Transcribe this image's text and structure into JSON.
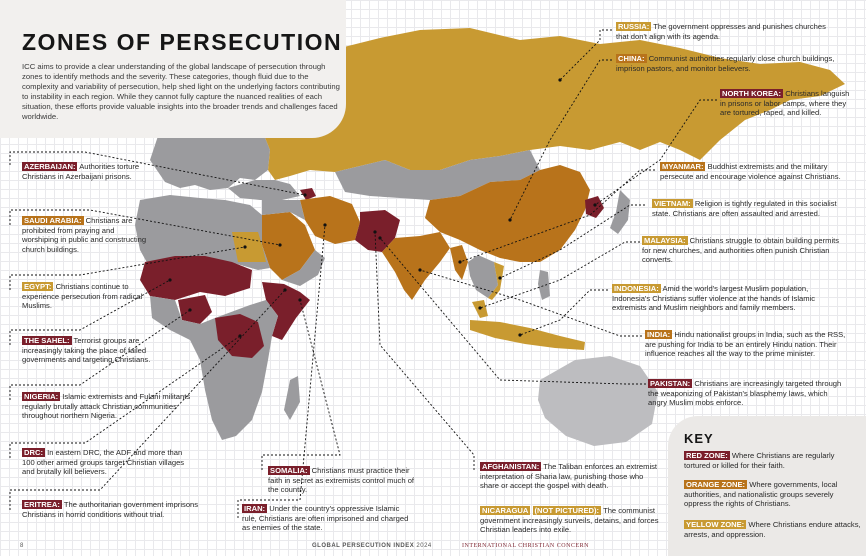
{
  "title": "ZONES OF PERSECUTION",
  "intro": "ICC aims to provide a clear understanding of the global landscape of persecution through zones to identify methods and the severity. These categories, though fluid due to the complexity and variability of persecution, help shed light on the underlying factors contributing to instability in each region. While they cannot fully capture the nuanced realities of each situation, these efforts provide valuable insights into the broader trends and challenges faced worldwide.",
  "colors": {
    "red": "#7a1f2b",
    "orange": "#b8731b",
    "yellow": "#c89a32",
    "grey": "#9b9b9e",
    "light_grey": "#bdbdc0"
  },
  "left_callouts": [
    {
      "zone": "red",
      "name": "AZERBAIJAN:",
      "text": "Authorities torture Christians in Azerbaijani prisons."
    },
    {
      "zone": "orange",
      "name": "SAUDI ARABIA:",
      "text": "Christians are prohibited from praying and worshiping in public and constructing church buildings."
    },
    {
      "zone": "yellow",
      "name": "EGYPT:",
      "text": "Christians continue to experience persecution from radical Muslims."
    },
    {
      "zone": "red",
      "name": "THE SAHEL:",
      "text": "Terrorist groups are increasingly taking the place of failed governments and targeting Christians."
    },
    {
      "zone": "red",
      "name": "NIGERIA:",
      "text": "Islamic extremists and Fulani militants regularly brutally attack Christian communities throughout northern Nigeria."
    },
    {
      "zone": "red",
      "name": "DRC:",
      "text": "In eastern DRC, the ADF and more than 100 other armed groups target Christian villages and brutally kill believers."
    },
    {
      "zone": "red",
      "name": "ERITREA:",
      "text": "The authoritarian government imprisons Christians in horrid conditions without trial."
    }
  ],
  "bottom_callouts": [
    {
      "zone": "red",
      "name": "SOMALIA:",
      "text": "Christians must practice their faith in secret as extremists control much of the country."
    },
    {
      "zone": "red",
      "name": "IRAN:",
      "text": "Under the country's oppressive Islamic rule, Christians are often imprisoned and charged as enemies of the state."
    },
    {
      "zone": "red",
      "name": "AFGHANISTAN:",
      "text": "The Taliban enforces an extremist interpretation of Sharia law, punishing those who share or accept the gospel with death."
    },
    {
      "zone": "yellow",
      "name": "NICARAGUA",
      "name_extra": "(NOT PICTURED):",
      "text": "The communist government increasingly surveils, detains, and forces Christian leaders into exile."
    }
  ],
  "right_callouts": [
    {
      "zone": "yellow",
      "name": "RUSSIA:",
      "text": "The government oppresses and punishes churches that don't align with its agenda."
    },
    {
      "zone": "orange",
      "name": "CHINA:",
      "text": "Communist authorities regularly close church buildings, imprison pastors, and monitor believers."
    },
    {
      "zone": "red",
      "name": "NORTH KOREA:",
      "text": "Christians languish in prisons or labor camps, where they are tortured, raped, and killed."
    },
    {
      "zone": "orange",
      "name": "MYANMAR:",
      "text": "Buddhist extremists and the military persecute and encourage violence against Christians."
    },
    {
      "zone": "yellow",
      "name": "VIETNAM:",
      "text": "Religion is tightly regulated in this socialist state. Christians are often assaulted and arrested."
    },
    {
      "zone": "yellow",
      "name": "MALAYSIA:",
      "text": "Christians struggle to obtain building permits for new churches, and authorities often punish Christian converts."
    },
    {
      "zone": "yellow",
      "name": "INDONESIA:",
      "text": "Amid the world's largest Muslim population, Indonesia's Christians suffer violence at the hands of Islamic extremists and Muslim neighbors and family members."
    },
    {
      "zone": "orange",
      "name": "INDIA:",
      "text": "Hindu nationalist groups in India, such as the RSS, are pushing for India to be an entirely Hindu nation. Their influence reaches all the way to the prime minister."
    },
    {
      "zone": "red",
      "name": "PAKISTAN:",
      "text": "Christians are increasingly targeted through the weaponizing of Pakistan's blasphemy laws, which angry Muslim mobs enforce."
    }
  ],
  "key": {
    "title": "KEY",
    "items": [
      {
        "zone": "red",
        "name": "RED ZONE:",
        "text": "Where Christians are regularly tortured or killed for their faith."
      },
      {
        "zone": "orange",
        "name": "ORANGE ZONE:",
        "text": "Where governments, local authorities, and nationalistic groups severely oppress the rights of Christians."
      },
      {
        "zone": "yellow",
        "name": "YELLOW ZONE:",
        "text": "Where Christians endure attacks, arrests, and oppression."
      }
    ]
  },
  "footer": {
    "page_number": "8",
    "publication": "GLOBAL PERSECUTION INDEX",
    "year": "2024",
    "organization": "INTERNATIONAL CHRISTIAN CONCERN"
  }
}
